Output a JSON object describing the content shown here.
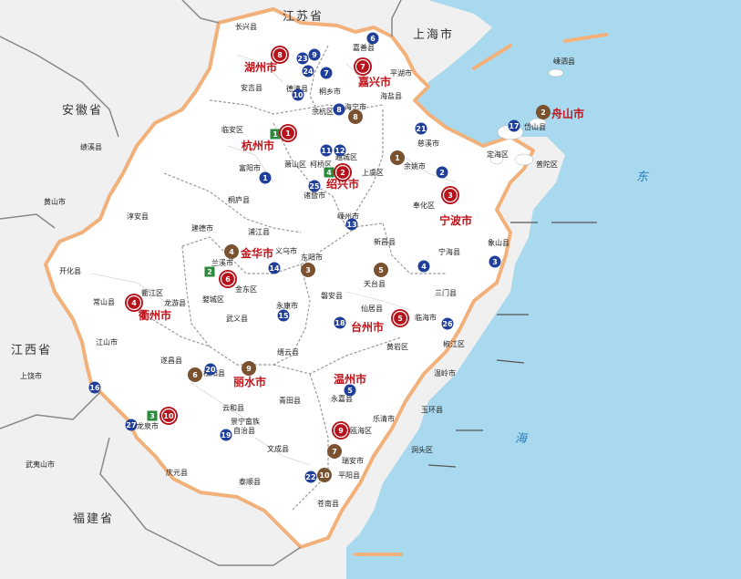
{
  "provinces": {
    "jiangsu": "江苏省",
    "shanghai": "上海市",
    "anhui": "安徽省",
    "jiangxi": "江西省",
    "fujian": "福建省"
  },
  "sea": {
    "east": "东",
    "sea": "海"
  },
  "cities": {
    "huzhou": "湖州市",
    "jiaxing": "嘉兴市",
    "hangzhou": "杭州市",
    "shaoxing": "绍兴市",
    "ningbo": "宁波市",
    "zhoushan": "舟山市",
    "jinhua": "金华市",
    "quzhou": "衢州市",
    "taizhou": "台州市",
    "lishui": "丽水市",
    "wenzhou": "温州市"
  },
  "counties": {
    "changxing": "长兴县",
    "anji": "安吉县",
    "deqing": "德清县",
    "jiashan": "嘉善县",
    "pinghu": "平湖市",
    "tongxiang": "桐乡市",
    "haiyan": "海盐县",
    "haining": "海宁市",
    "yuhang": "余杭区",
    "linan": "临安区",
    "fuyang": "富阳市",
    "tonglu": "桐庐县",
    "chunan": "淳安县",
    "jiande": "建德市",
    "xiaoshan": "萧山区",
    "keqiao": "柯桥区",
    "yuecheng": "越城区",
    "zhuji": "诸暨市",
    "shangyu": "上虞区",
    "shengzhou": "嵊州市",
    "xinchang": "新昌县",
    "cixi": "慈溪市",
    "yuyao": "余姚市",
    "fenghua": "奉化区",
    "ninghai": "宁海县",
    "xiangshan": "象山县",
    "daishan": "岱山县",
    "dinghai": "定海区",
    "putuo": "普陀区",
    "shengsi": "嵊泗县",
    "pujiang": "浦江县",
    "lanxi": "兰溪市",
    "yiwu": "义乌市",
    "dongyang": "东阳市",
    "pan_an": "磐安县",
    "yongkang": "永康市",
    "wuyi": "武义县",
    "jindong": "金东区",
    "wucheng": "婺城区",
    "kaihua": "开化县",
    "changshan": "常山县",
    "qujiang": "衢江区",
    "longyou": "龙游县",
    "jiangshan": "江山市",
    "tiantai": "天台县",
    "sanmen": "三门县",
    "xianju": "仙居县",
    "linhai": "临海市",
    "huangyan": "黄岩区",
    "jiaojiang": "椒江区",
    "wenling": "温岭市",
    "yuhuan": "玉环县",
    "suichang": "遂昌县",
    "songyang": "松阳县",
    "jinyun": "缙云县",
    "qingtian": "青田县",
    "yunhe": "云和县",
    "jingning": "景宁畲族",
    "jingning2": "自治县",
    "longquan": "龙泉市",
    "qingyuan": "庆元县",
    "yongjia": "永嘉县",
    "leqing": "乐清市",
    "ouhai": "瓯海区",
    "dongtou": "洞头区",
    "ruian": "瑞安市",
    "wencheng": "文成县",
    "taishun": "泰顺县",
    "pingyang": "平阳县",
    "cangnan": "苍南县",
    "jixi": "绩溪县",
    "huangshan": "黄山市",
    "shangrao": "上饶市",
    "wuyishan": "武夷山市"
  },
  "red_markers": [
    "1",
    "2",
    "3",
    "4",
    "5",
    "6",
    "7",
    "8",
    "9",
    "10"
  ],
  "brown_markers": [
    "1",
    "2",
    "3",
    "4",
    "5",
    "6",
    "7",
    "8",
    "9",
    "10"
  ],
  "blue_markers": [
    "1",
    "2",
    "3",
    "4",
    "5",
    "6",
    "7",
    "8",
    "9",
    "10",
    "11",
    "12",
    "13",
    "14",
    "15",
    "16",
    "17",
    "18",
    "19",
    "20",
    "21",
    "22",
    "23",
    "24",
    "25",
    "26",
    "27"
  ],
  "green_markers": [
    "1",
    "2",
    "3",
    "4"
  ],
  "colors": {
    "sea": "#a8d9ee",
    "province_fill": "#ffffff",
    "border": "#f2b07a",
    "outside": "#eeeeee",
    "red": "#b5121b",
    "brown": "#7a5230",
    "blue": "#1f3f9a",
    "green": "#2a8a3a"
  }
}
